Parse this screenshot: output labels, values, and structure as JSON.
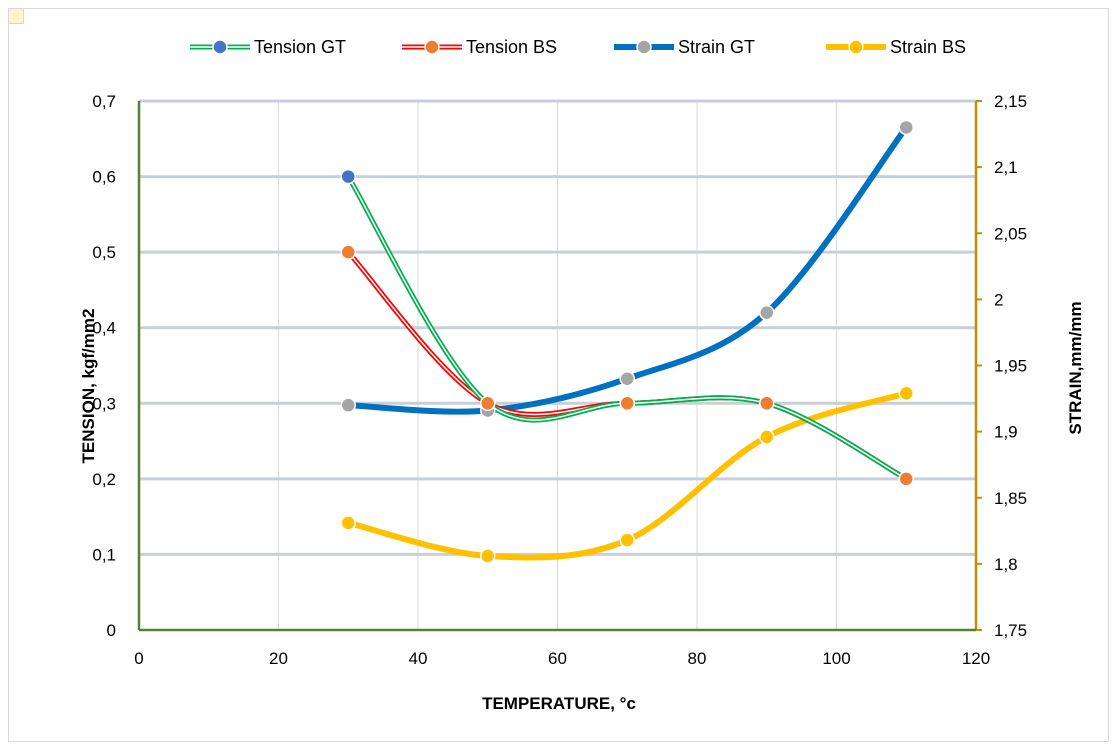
{
  "chart_data": {
    "type": "line",
    "xlabel": "TEMPERATURE, °c",
    "ylabel_left": "TENSION, kgf/mm2",
    "ylabel_right": "STRAIN,mm/mm",
    "x_range": [
      0,
      120
    ],
    "x_ticks": [
      "0",
      "20",
      "40",
      "60",
      "80",
      "100",
      "120"
    ],
    "y_left_range": [
      0,
      0.7
    ],
    "y_left_ticks": [
      "0",
      "0,1",
      "0,2",
      "0,3",
      "0,4",
      "0,5",
      "0,6",
      "0,7"
    ],
    "y_right_range": [
      1.75,
      2.15
    ],
    "y_right_ticks": [
      "1,75",
      "1,8",
      "1,85",
      "1,9",
      "1,95",
      "2",
      "2,05",
      "2,1",
      "2,15"
    ],
    "grid": true,
    "legend_position": "top",
    "series": [
      {
        "name": "Tension GT",
        "axis": "left",
        "x": [
          30,
          50,
          70,
          90,
          110
        ],
        "y": [
          0.6,
          0.3,
          0.3,
          0.3,
          0.2
        ],
        "line_color": "#00b050",
        "line_style": "double",
        "marker_first_color": "#4472c4",
        "marker_color": "#ed7d31"
      },
      {
        "name": "Tension BS",
        "axis": "left",
        "x": [
          30,
          50,
          70,
          90,
          110
        ],
        "y": [
          0.5,
          0.3,
          0.3,
          0.3,
          0.2
        ],
        "line_color": "#ff0000",
        "line_style": "double",
        "marker_color": "#ed7d31"
      },
      {
        "name": "Strain GT",
        "axis": "right",
        "x": [
          30,
          50,
          70,
          90,
          110
        ],
        "y": [
          1.92,
          1.916,
          1.94,
          1.99,
          2.13
        ],
        "line_color": "#0070c0",
        "line_style": "solid",
        "marker_color": "#a5a5a5"
      },
      {
        "name": "Strain BS",
        "axis": "right",
        "x": [
          30,
          50,
          70,
          90,
          110
        ],
        "y": [
          1.831,
          1.806,
          1.818,
          1.896,
          1.929
        ],
        "line_color": "#ffc000",
        "line_style": "solid",
        "marker_color": "#ffc000"
      }
    ],
    "colors": {
      "left_axis": "#548235",
      "right_axis": "#bf9000",
      "grid": "#c9cfd8"
    }
  }
}
